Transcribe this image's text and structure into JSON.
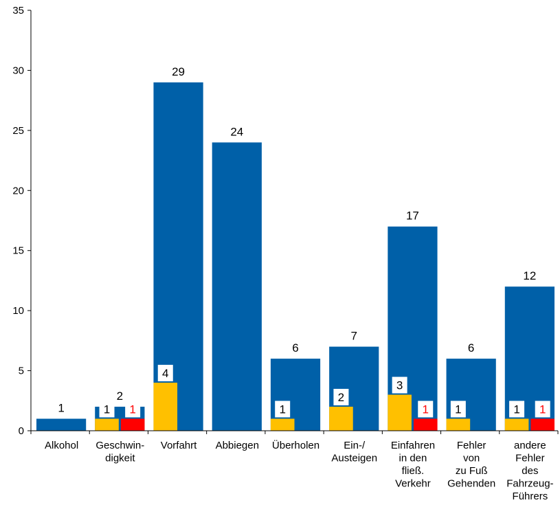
{
  "chart_data": {
    "type": "bar",
    "title": "",
    "xlabel": "",
    "ylabel": "",
    "ylim": [
      0,
      35
    ],
    "yticks": [
      0,
      5,
      10,
      15,
      20,
      25,
      30,
      35
    ],
    "grid": false,
    "legend": "none",
    "categories": [
      [
        "Alkohol"
      ],
      [
        "Geschwin-",
        "digkeit"
      ],
      [
        "Vorfahrt"
      ],
      [
        "Abbiegen"
      ],
      [
        "Überholen"
      ],
      [
        "Ein-/",
        "Austeigen"
      ],
      [
        "Einfahren",
        "in den",
        "fließ.",
        "Verkehr"
      ],
      [
        "Fehler",
        "von",
        "zu Fuß",
        "Gehenden"
      ],
      [
        "andere",
        "Fehler",
        "des",
        "Fahrzeug-",
        "Führers"
      ]
    ],
    "series": [
      {
        "color": "#0060A8",
        "values": [
          1,
          2,
          29,
          24,
          6,
          7,
          17,
          6,
          12
        ],
        "labels": [
          "1",
          "2",
          "29",
          "24",
          "6",
          "7",
          "17",
          "6",
          "12"
        ]
      },
      {
        "color": "#FFC000",
        "values": [
          0,
          1,
          4,
          0,
          1,
          2,
          3,
          1,
          1
        ],
        "labels": [
          "",
          "1",
          "4",
          "",
          "1",
          "2",
          "3",
          "1",
          "1"
        ]
      },
      {
        "color": "#FF0000",
        "values": [
          0,
          1,
          0,
          0,
          0,
          0,
          1,
          0,
          1
        ],
        "labels": [
          "",
          "1",
          "",
          "",
          "",
          "",
          "1",
          "",
          "1"
        ]
      }
    ]
  }
}
